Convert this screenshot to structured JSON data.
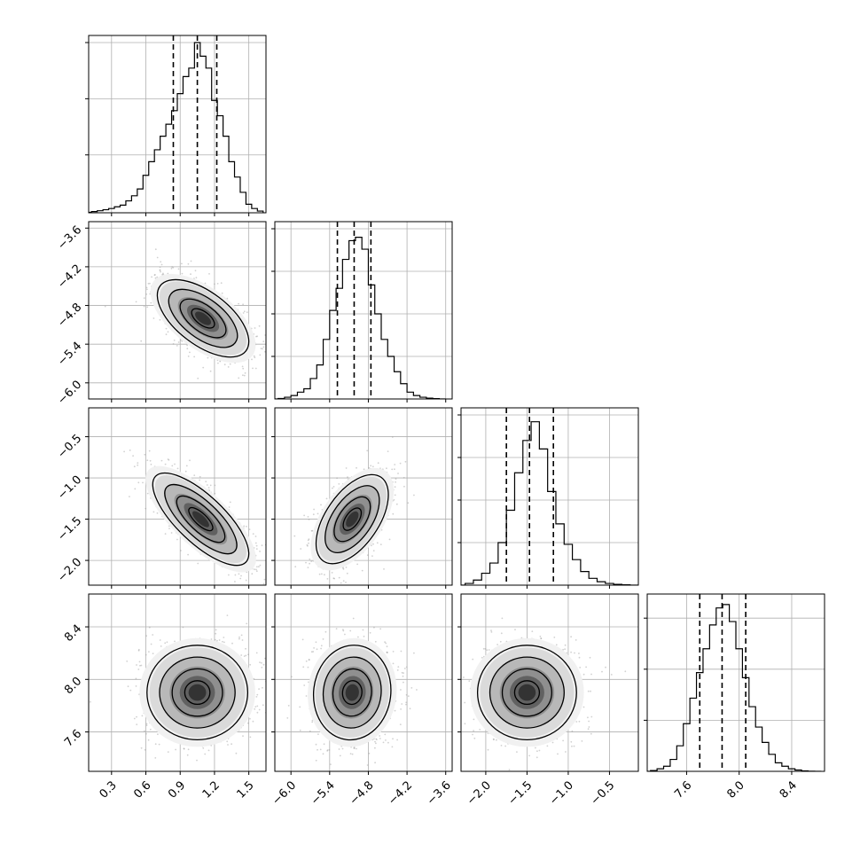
{
  "chart_data": {
    "type": "corner",
    "grid": true,
    "parameters": [
      {
        "range": [
          0.1,
          1.65
        ],
        "ticks": [
          "0.3",
          "0.6",
          "0.9",
          "1.2",
          "1.5"
        ],
        "quantiles": [
          0.84,
          1.05,
          1.22
        ],
        "hist": {
          "x": [
            0.1,
            0.15,
            0.2,
            0.25,
            0.3,
            0.35,
            0.4,
            0.45,
            0.5,
            0.55,
            0.6,
            0.65,
            0.7,
            0.75,
            0.8,
            0.85,
            0.9,
            0.95,
            1.0,
            1.05,
            1.1,
            1.15,
            1.2,
            1.25,
            1.3,
            1.35,
            1.4,
            1.45,
            1.5,
            1.55,
            1.6
          ],
          "y": [
            0.003,
            0.007,
            0.012,
            0.018,
            0.025,
            0.035,
            0.045,
            0.07,
            0.1,
            0.14,
            0.22,
            0.3,
            0.37,
            0.45,
            0.52,
            0.6,
            0.7,
            0.8,
            0.85,
            1.0,
            0.92,
            0.85,
            0.66,
            0.57,
            0.45,
            0.3,
            0.21,
            0.12,
            0.05,
            0.025,
            0.01
          ]
        },
        "hist_yticks": [
          0.34,
          0.67,
          1.0
        ]
      },
      {
        "range": [
          -6.25,
          -3.5
        ],
        "ticks": [
          "−6.0",
          "−5.4",
          "−4.8",
          "−4.2",
          "−3.6"
        ],
        "quantiles": [
          -5.28,
          -5.02,
          -4.76
        ],
        "hist": {
          "x": [
            -6.25,
            -6.15,
            -6.05,
            -5.95,
            -5.85,
            -5.75,
            -5.65,
            -5.55,
            -5.45,
            -5.35,
            -5.25,
            -5.15,
            -5.05,
            -4.95,
            -4.85,
            -4.75,
            -4.65,
            -4.55,
            -4.45,
            -4.35,
            -4.25,
            -4.15,
            -4.05,
            -3.95,
            -3.85,
            -3.75,
            -3.65
          ],
          "y": [
            0.0,
            0.003,
            0.01,
            0.02,
            0.04,
            0.06,
            0.12,
            0.2,
            0.35,
            0.52,
            0.65,
            0.82,
            0.93,
            0.95,
            0.88,
            0.67,
            0.5,
            0.35,
            0.25,
            0.16,
            0.09,
            0.04,
            0.02,
            0.01,
            0.005,
            0.002,
            0.0
          ]
        },
        "hist_yticks": [
          0.25,
          0.5,
          0.75,
          1.0
        ]
      },
      {
        "range": [
          -2.3,
          -0.15
        ],
        "ticks": [
          "−2.0",
          "−1.5",
          "−1.0",
          "−0.5"
        ],
        "quantiles": [
          -1.75,
          -1.47,
          -1.18
        ],
        "hist": {
          "x": [
            -2.3,
            -2.2,
            -2.1,
            -2.0,
            -1.9,
            -1.8,
            -1.7,
            -1.6,
            -1.5,
            -1.4,
            -1.3,
            -1.2,
            -1.1,
            -1.0,
            -0.9,
            -0.8,
            -0.7,
            -0.6,
            -0.5,
            -0.4,
            -0.3,
            -0.2
          ],
          "y": [
            0.0,
            0.01,
            0.03,
            0.07,
            0.13,
            0.25,
            0.44,
            0.66,
            0.85,
            0.96,
            0.8,
            0.55,
            0.36,
            0.24,
            0.15,
            0.08,
            0.04,
            0.02,
            0.01,
            0.005,
            0.002,
            0.0
          ]
        },
        "hist_yticks": [
          0.25,
          0.5,
          0.75,
          1.0
        ]
      },
      {
        "range": [
          7.3,
          8.65
        ],
        "ticks": [
          "7.6",
          "8.0",
          "8.4"
        ],
        "quantiles": [
          7.7,
          7.87,
          8.05
        ],
        "hist": {
          "x": [
            7.3,
            7.35,
            7.4,
            7.45,
            7.5,
            7.55,
            7.6,
            7.65,
            7.7,
            7.75,
            7.8,
            7.85,
            7.9,
            7.95,
            8.0,
            8.05,
            8.1,
            8.15,
            8.2,
            8.25,
            8.3,
            8.35,
            8.4,
            8.45,
            8.5,
            8.55,
            8.6
          ],
          "y": [
            0.0,
            0.005,
            0.015,
            0.03,
            0.07,
            0.15,
            0.28,
            0.43,
            0.58,
            0.72,
            0.86,
            0.96,
            0.98,
            0.88,
            0.72,
            0.55,
            0.38,
            0.26,
            0.17,
            0.1,
            0.05,
            0.03,
            0.015,
            0.008,
            0.003,
            0.001,
            0.0
          ]
        },
        "hist_yticks": [
          0.3,
          0.6,
          0.9
        ]
      }
    ],
    "pairs": [
      {
        "row": 1,
        "col": 0,
        "center": [
          1.1,
          -5.0
        ],
        "sd": [
          0.2,
          0.3
        ],
        "rho": -0.6
      },
      {
        "row": 2,
        "col": 0,
        "center": [
          1.08,
          -1.5
        ],
        "sd": [
          0.21,
          0.28
        ],
        "rho": -0.75
      },
      {
        "row": 2,
        "col": 1,
        "center": [
          -5.05,
          -1.5
        ],
        "sd": [
          0.28,
          0.27
        ],
        "rho": 0.55
      },
      {
        "row": 3,
        "col": 0,
        "center": [
          1.05,
          7.9
        ],
        "sd": [
          0.22,
          0.18
        ],
        "rho": 0.0
      },
      {
        "row": 3,
        "col": 1,
        "center": [
          -5.05,
          7.9
        ],
        "sd": [
          0.3,
          0.18
        ],
        "rho": 0.05
      },
      {
        "row": 3,
        "col": 2,
        "center": [
          -1.5,
          7.9
        ],
        "sd": [
          0.3,
          0.18
        ],
        "rho": 0.0
      }
    ],
    "contour_levels_sigma": [
      0.5,
      1.0,
      1.5,
      2.0
    ]
  },
  "colors": {
    "line": "#000000",
    "grid": "#b0b0b0",
    "points": "#9a9a9a",
    "frame": "#000000"
  }
}
